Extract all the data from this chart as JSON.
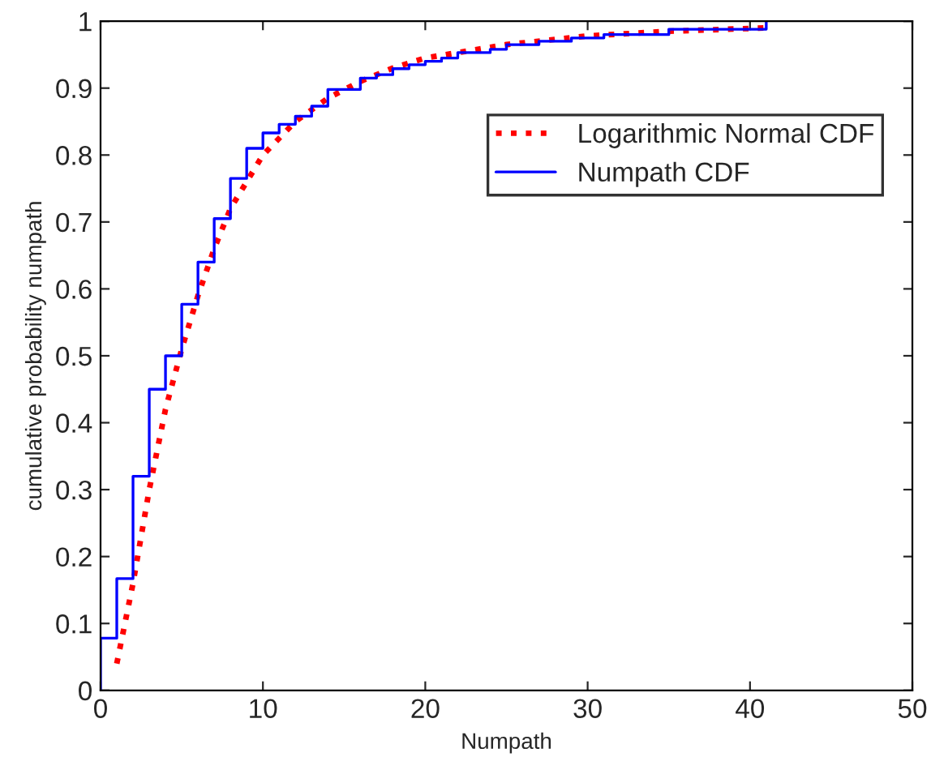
{
  "chart_data": {
    "type": "line",
    "xlabel": "Numpath",
    "ylabel": "cumulative probability numpath",
    "xlim": [
      0,
      50
    ],
    "xticks": [
      0,
      10,
      20,
      30,
      40,
      50
    ],
    "ylim": [
      0,
      1
    ],
    "yticks": [
      0,
      0.1,
      0.2,
      0.3,
      0.4,
      0.5,
      0.6,
      0.7,
      0.8,
      0.9,
      1
    ],
    "grid": false,
    "legend": "top right",
    "series": [
      {
        "name": "Logarithmic Normal CDF",
        "line_style": "dotted",
        "color": "#ff0000",
        "x": [
          1,
          1.5,
          2,
          3,
          4,
          5,
          6,
          7,
          8,
          9,
          10,
          12,
          14,
          16,
          18,
          20,
          25,
          30,
          35,
          41
        ],
        "values": [
          0.04,
          0.1,
          0.16,
          0.3,
          0.42,
          0.51,
          0.59,
          0.66,
          0.72,
          0.76,
          0.8,
          0.85,
          0.885,
          0.91,
          0.93,
          0.945,
          0.965,
          0.978,
          0.985,
          0.99
        ]
      },
      {
        "name": "Numpath CDF",
        "type": "step",
        "line_style": "solid",
        "color": "#0000ff",
        "x": [
          0,
          0,
          1,
          2,
          3,
          4,
          5,
          6,
          7,
          8,
          9,
          10,
          11,
          12,
          13,
          14,
          16,
          17,
          18,
          19,
          20,
          21,
          22,
          24,
          25,
          27,
          29,
          31,
          35,
          41
        ],
        "values": [
          0,
          0.078,
          0.167,
          0.32,
          0.45,
          0.5,
          0.577,
          0.64,
          0.705,
          0.765,
          0.81,
          0.833,
          0.846,
          0.858,
          0.873,
          0.898,
          0.915,
          0.92,
          0.929,
          0.935,
          0.94,
          0.945,
          0.953,
          0.958,
          0.965,
          0.97,
          0.975,
          0.98,
          0.988,
          1.0
        ]
      }
    ]
  }
}
